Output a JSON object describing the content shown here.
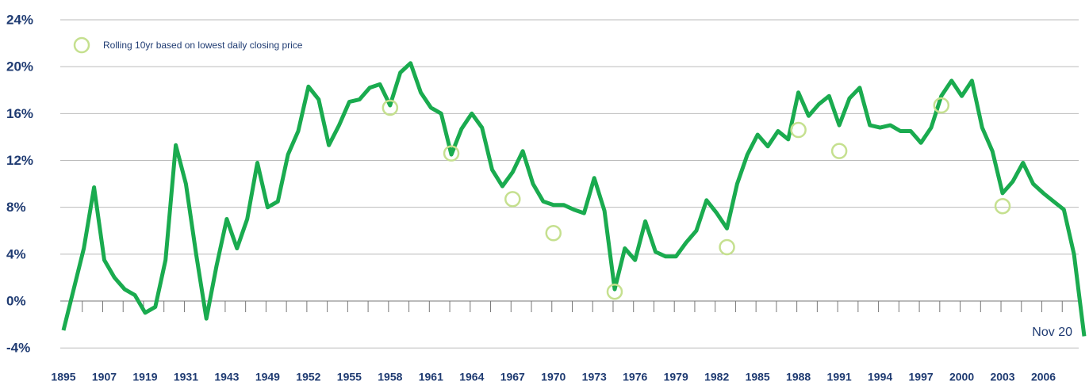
{
  "chart_data": {
    "type": "line",
    "annotation": "Nov 20",
    "categories": [
      "1895",
      null,
      null,
      null,
      "1907",
      null,
      null,
      null,
      "1919",
      null,
      null,
      null,
      "1931",
      null,
      null,
      null,
      "1943",
      null,
      null,
      null,
      "1949",
      null,
      null,
      null,
      "1952",
      null,
      null,
      null,
      "1955",
      null,
      null,
      null,
      "1958",
      null,
      null,
      null,
      "1961",
      null,
      null,
      null,
      "1964",
      null,
      null,
      null,
      "1967",
      null,
      null,
      null,
      "1970",
      null,
      null,
      null,
      "1973",
      null,
      null,
      null,
      "1976",
      null,
      null,
      null,
      "1979",
      null,
      null,
      null,
      "1982",
      null,
      null,
      null,
      "1985",
      null,
      null,
      null,
      "1988",
      null,
      null,
      null,
      "1991",
      null,
      null,
      null,
      "1994",
      null,
      null,
      null,
      "1997",
      null,
      null,
      null,
      "2000",
      null,
      null,
      null,
      "2003",
      null,
      null,
      null,
      "2006",
      null,
      null,
      null,
      null
    ],
    "series": [
      {
        "color": "#1aab4f",
        "values": [
          -2.5,
          1.0,
          4.5,
          9.7,
          3.5,
          2.0,
          1.0,
          0.5,
          -1.0,
          -0.5,
          3.5,
          13.3,
          10,
          4,
          -1.5,
          3,
          7,
          4.5,
          7,
          11.8,
          8,
          8.5,
          12.5,
          14.5,
          18.3,
          17.2,
          13.3,
          15,
          17,
          17.2,
          18.2,
          18.5,
          16.7,
          19.5,
          20.3,
          17.8,
          16.5,
          16,
          12.5,
          14.7,
          16,
          14.8,
          11.2,
          9.8,
          11,
          12.8,
          10,
          8.5,
          8.2,
          8.2,
          7.8,
          7.5,
          10.5,
          7.7,
          1,
          4.5,
          3.5,
          6.8,
          4.2,
          3.8,
          3.8,
          5,
          6,
          8.6,
          7.5,
          6.2,
          10,
          12.5,
          14.2,
          13.2,
          14.5,
          13.8,
          17.8,
          15.8,
          16.8,
          17.5,
          15,
          17.3,
          18.2,
          15,
          14.8,
          15,
          14.5,
          14.5,
          13.5,
          14.8,
          17.5,
          18.8,
          17.5,
          18.8,
          14.8,
          12.8,
          9.2,
          10.2,
          11.8,
          10,
          9.2,
          8.5,
          7.8,
          4,
          -3
        ]
      },
      {
        "name": "Rolling 10yr based on lowest daily closing price",
        "color": "#c5e08f",
        "marker": "circle",
        "values": [
          null,
          null,
          null,
          null,
          null,
          null,
          null,
          null,
          null,
          null,
          null,
          null,
          null,
          null,
          null,
          null,
          null,
          null,
          null,
          null,
          null,
          null,
          null,
          null,
          null,
          null,
          null,
          null,
          null,
          null,
          null,
          null,
          16.5,
          null,
          null,
          null,
          null,
          null,
          12.6,
          null,
          null,
          null,
          null,
          null,
          8.7,
          null,
          null,
          null,
          5.8,
          null,
          null,
          null,
          null,
          null,
          0.8,
          null,
          null,
          null,
          null,
          null,
          null,
          null,
          null,
          null,
          null,
          4.6,
          null,
          null,
          null,
          null,
          null,
          null,
          14.6,
          null,
          null,
          null,
          12.8,
          null,
          null,
          null,
          null,
          null,
          null,
          null,
          null,
          null,
          16.7,
          null,
          null,
          null,
          null,
          null,
          8.1,
          null,
          null,
          null,
          null,
          null,
          null,
          null,
          null
        ]
      }
    ],
    "ylim": [
      -4,
      24
    ],
    "yticks": [
      {
        "value": -4,
        "label": "-4%"
      },
      {
        "value": 0,
        "label": "0%"
      },
      {
        "value": 4,
        "label": "4%"
      },
      {
        "value": 8,
        "label": "8%"
      },
      {
        "value": 12,
        "label": "12%"
      },
      {
        "value": 16,
        "label": "16%"
      },
      {
        "value": 20,
        "label": "20%"
      },
      {
        "value": 24,
        "label": "24%"
      }
    ],
    "grid": true
  }
}
